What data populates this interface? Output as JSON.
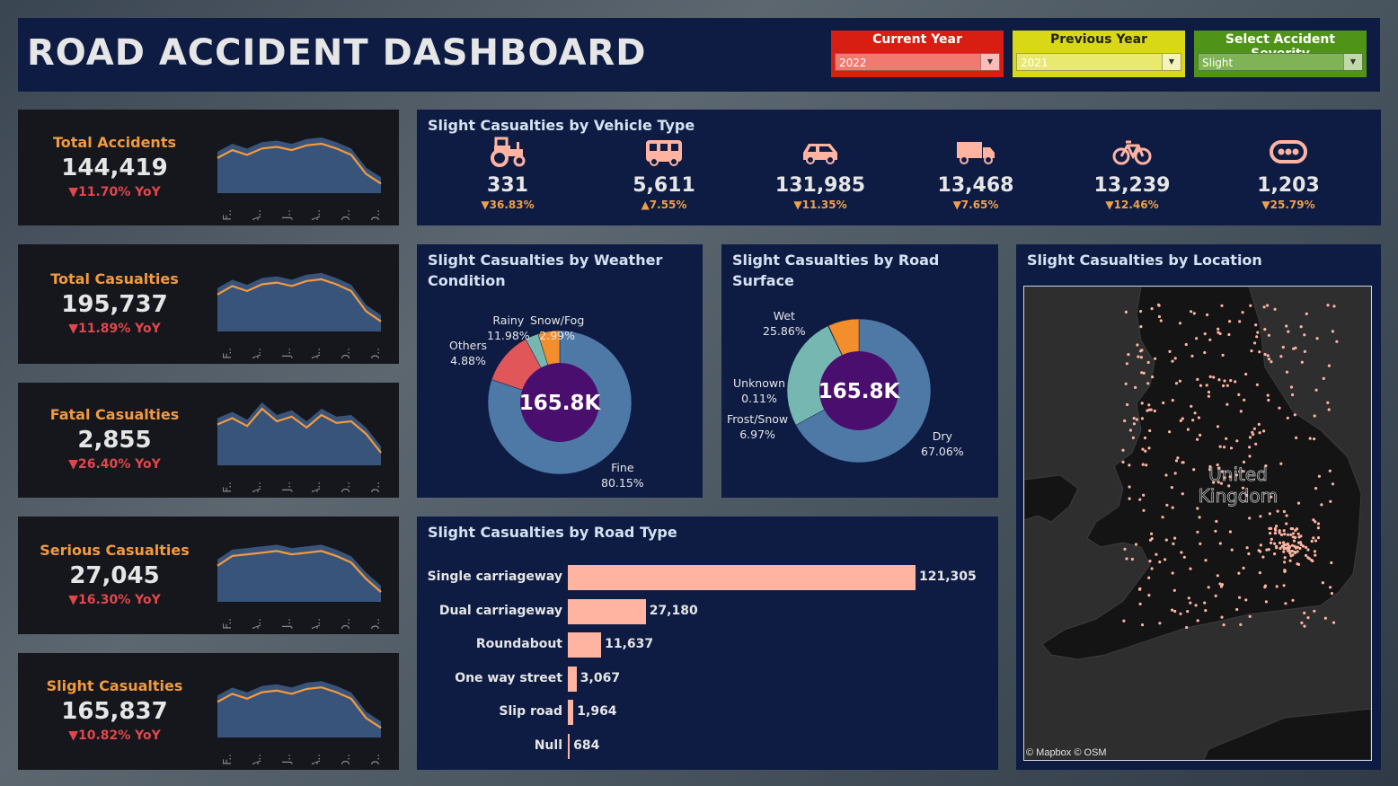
{
  "header": {
    "title": "ROAD ACCIDENT DASHBOARD",
    "filters": [
      {
        "label": "Current Year",
        "value": "2022",
        "color": "#d81e12"
      },
      {
        "label": "Previous Year",
        "value": "2021",
        "color": "#d8d816"
      },
      {
        "label": "Select Accident Severity",
        "value": "Slight",
        "color": "#4f9418"
      }
    ]
  },
  "kpis": [
    {
      "label": "Total Accidents",
      "value": "144,419",
      "yoy": "▼11.70% YoY"
    },
    {
      "label": "Total Casualties",
      "value": "195,737",
      "yoy": "▼11.89% YoY"
    },
    {
      "label": "Fatal Casualties",
      "value": "2,855",
      "yoy": "▼26.40% YoY"
    },
    {
      "label": "Serious Casualties",
      "value": "27,045",
      "yoy": "▼16.30% YoY"
    },
    {
      "label": "Slight Casualties",
      "value": "165,837",
      "yoy": "▼10.82% YoY"
    }
  ],
  "spark_months": [
    "F..",
    "A..",
    "J..",
    "A..",
    "O..",
    "D.."
  ],
  "vehicle": {
    "title": "Slight Casualties by Vehicle Type",
    "items": [
      {
        "icon": "tractor-icon",
        "value": "331",
        "yoy": "▼36.83%"
      },
      {
        "icon": "bus-icon",
        "value": "5,611",
        "yoy": "▲7.55%"
      },
      {
        "icon": "car-icon",
        "value": "131,985",
        "yoy": "▼11.35%"
      },
      {
        "icon": "truck-icon",
        "value": "13,468",
        "yoy": "▼7.65%"
      },
      {
        "icon": "bicycle-icon",
        "value": "13,239",
        "yoy": "▼12.46%"
      },
      {
        "icon": "other-vehicle-icon",
        "value": "1,203",
        "yoy": "▼25.79%"
      }
    ]
  },
  "weather": {
    "title": "Slight Casualties by Weather Condition",
    "center": "165.8K",
    "labels": {
      "rainy": [
        "Rainy",
        "11.98%"
      ],
      "snow": [
        "Snow/Fog",
        "2.99%"
      ],
      "others": [
        "Others",
        "4.88%"
      ],
      "fine": [
        "Fine",
        "80.15%"
      ]
    }
  },
  "surface": {
    "title": "Slight Casualties by Road Surface",
    "center": "165.8K",
    "labels": {
      "wet": [
        "Wet",
        "25.86%"
      ],
      "unknown": [
        "Unknown",
        "0.11%"
      ],
      "frost": [
        "Frost/Snow",
        "6.97%"
      ],
      "dry": [
        "Dry",
        "67.06%"
      ]
    }
  },
  "location": {
    "title": "Slight Casualties by Location",
    "map_label_1": "United",
    "map_label_2": "Kingdom",
    "attribution": "© Mapbox © OSM"
  },
  "road_type": {
    "title": "Slight Casualties by Road Type",
    "labels": {
      "single": "121,305",
      "dual": "27,180",
      "roundabout": "11,637",
      "oneway": "3,067",
      "slip": "1,964",
      "null": "684"
    }
  },
  "chart_data": [
    {
      "type": "pie",
      "title": "Slight Casualties by Weather Condition",
      "categories": [
        "Fine",
        "Rainy",
        "Snow/Fog",
        "Others"
      ],
      "values": [
        80.15,
        11.98,
        2.99,
        4.88
      ],
      "colors": [
        "#4e79a7",
        "#e15759",
        "#76b7b2",
        "#f28e2b"
      ]
    },
    {
      "type": "pie",
      "title": "Slight Casualties by Road Surface",
      "categories": [
        "Dry",
        "Wet",
        "Unknown",
        "Frost/Snow"
      ],
      "values": [
        67.06,
        25.86,
        0.11,
        6.97
      ],
      "colors": [
        "#4e79a7",
        "#76b7b2",
        "#e15759",
        "#f28e2b"
      ]
    },
    {
      "type": "bar",
      "title": "Slight Casualties by Road Type",
      "categories": [
        "Single carriageway",
        "Dual carriageway",
        "Roundabout",
        "One way street",
        "Slip road",
        "Null"
      ],
      "values": [
        121305,
        27180,
        11637,
        3067,
        1964,
        684
      ]
    }
  ]
}
